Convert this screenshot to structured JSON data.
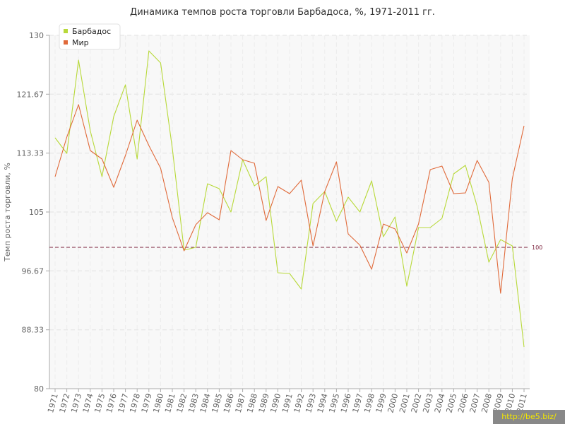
{
  "chart_data": {
    "type": "line",
    "title": "Динамика темпов роста торговли Барбадоса, %, 1971-2011 гг.",
    "xlabel": "",
    "ylabel": "Темп роста торговли, %",
    "ylim": [
      80,
      130
    ],
    "yticks": [
      "80",
      "88.33",
      "96.67",
      "105",
      "113.33",
      "121.67",
      "130"
    ],
    "reference_line": {
      "value": 100,
      "label": "100",
      "color": "#7a1f3a"
    },
    "grid": true,
    "legend_position": "top-left",
    "x": [
      "1971",
      "1972",
      "1973",
      "1974",
      "1975",
      "1976",
      "1977",
      "1978",
      "1979",
      "1980",
      "1981",
      "1982",
      "1983",
      "1984",
      "1985",
      "1986",
      "1987",
      "1988",
      "1989",
      "1990",
      "1991",
      "1992",
      "1993",
      "1994",
      "1995",
      "1996",
      "1997",
      "1998",
      "1999",
      "2000",
      "2001",
      "2002",
      "2003",
      "2004",
      "2005",
      "2006",
      "2007",
      "2008",
      "2009",
      "2010",
      "2011"
    ],
    "series": [
      {
        "name": "Барбадос",
        "color": "#b8d93a",
        "values": [
          115.5,
          113.3,
          126.5,
          116.5,
          110,
          118.5,
          123,
          112.5,
          127.8,
          126.1,
          114,
          99.6,
          100,
          109,
          108.3,
          105,
          112.4,
          108.7,
          110,
          96.4,
          96.3,
          94.1,
          106.2,
          107.9,
          103.7,
          107.1,
          105,
          109.4,
          101.5,
          104.3,
          94.5,
          102.8,
          102.8,
          104.1,
          110.4,
          111.6,
          105.8,
          97.9,
          101.1,
          100.2,
          85.9
        ]
      },
      {
        "name": "Мир",
        "color": "#e06a3a",
        "values": [
          110,
          115.6,
          120.2,
          113.7,
          112.5,
          108.5,
          113,
          118,
          114.4,
          111.2,
          104.2,
          99.5,
          103.2,
          104.9,
          103.9,
          113.7,
          112.4,
          111.9,
          103.8,
          108.6,
          107.6,
          109.5,
          100.2,
          107.9,
          112.1,
          101.9,
          100.3,
          96.9,
          103.3,
          102.6,
          99.2,
          103.3,
          111,
          111.5,
          107.6,
          107.7,
          112.3,
          109.2,
          93.5,
          109.7,
          117.2
        ]
      }
    ]
  },
  "watermark": "http://be5.biz/"
}
